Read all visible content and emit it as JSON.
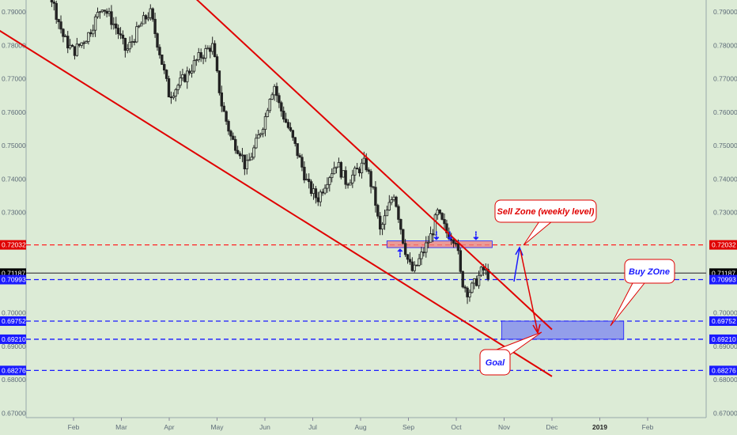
{
  "chart_data": {
    "type": "candlestick",
    "x_axis": {
      "ticks": [
        {
          "label": "Feb",
          "month": 1.0
        },
        {
          "label": "Mar",
          "month": 2.0
        },
        {
          "label": "Apr",
          "month": 3.0
        },
        {
          "label": "May",
          "month": 4.0
        },
        {
          "label": "Jun",
          "month": 5.0
        },
        {
          "label": "Jul",
          "month": 6.0
        },
        {
          "label": "Aug",
          "month": 7.0
        },
        {
          "label": "Sep",
          "month": 8.0
        },
        {
          "label": "Oct",
          "month": 9.0
        },
        {
          "label": "Nov",
          "month": 10.0
        },
        {
          "label": "Dec",
          "month": 11.0
        },
        {
          "label": "2019",
          "month": 12.0,
          "bold": true
        },
        {
          "label": "Feb",
          "month": 13.0
        }
      ]
    },
    "y_axis": {
      "range": [
        0.67,
        0.795
      ],
      "ticks": [
        "0.79000",
        "0.78000",
        "0.77000",
        "0.76000",
        "0.75000",
        "0.74000",
        "0.73000",
        "0.72000",
        "0.71000",
        "0.70000",
        "0.69000",
        "0.68000",
        "0.67000"
      ],
      "grid": false
    },
    "price_path": [
      [
        -0.8,
        0.788
      ],
      [
        -0.5,
        0.783
      ],
      [
        -0.2,
        0.795
      ],
      [
        0.2,
        0.8
      ],
      [
        0.5,
        0.796
      ],
      [
        0.8,
        0.782
      ],
      [
        1.0,
        0.778
      ],
      [
        1.3,
        0.783
      ],
      [
        1.6,
        0.792
      ],
      [
        1.9,
        0.785
      ],
      [
        2.1,
        0.778
      ],
      [
        2.4,
        0.786
      ],
      [
        2.6,
        0.79
      ],
      [
        2.8,
        0.778
      ],
      [
        3.0,
        0.765
      ],
      [
        3.3,
        0.77
      ],
      [
        3.6,
        0.776
      ],
      [
        3.9,
        0.78
      ],
      [
        4.1,
        0.762
      ],
      [
        4.3,
        0.752
      ],
      [
        4.5,
        0.748
      ],
      [
        4.6,
        0.743
      ],
      [
        4.8,
        0.75
      ],
      [
        5.0,
        0.758
      ],
      [
        5.1,
        0.765
      ],
      [
        5.2,
        0.768
      ],
      [
        5.3,
        0.762
      ],
      [
        5.5,
        0.755
      ],
      [
        5.7,
        0.747
      ],
      [
        5.9,
        0.738
      ],
      [
        6.1,
        0.734
      ],
      [
        6.3,
        0.74
      ],
      [
        6.5,
        0.745
      ],
      [
        6.7,
        0.739
      ],
      [
        6.9,
        0.742
      ],
      [
        7.1,
        0.745
      ],
      [
        7.3,
        0.734
      ],
      [
        7.4,
        0.724
      ],
      [
        7.5,
        0.728
      ],
      [
        7.7,
        0.736
      ],
      [
        7.9,
        0.721
      ],
      [
        8.0,
        0.715
      ],
      [
        8.1,
        0.712
      ],
      [
        8.3,
        0.718
      ],
      [
        8.5,
        0.724
      ],
      [
        8.6,
        0.73
      ],
      [
        8.7,
        0.727
      ],
      [
        8.8,
        0.724
      ],
      [
        9.0,
        0.722
      ],
      [
        9.1,
        0.71
      ],
      [
        9.25,
        0.706
      ],
      [
        9.4,
        0.709
      ],
      [
        9.55,
        0.713
      ],
      [
        9.7,
        0.711
      ]
    ],
    "channel": {
      "upper": [
        [
          3.1,
          0.8
        ],
        [
          11.0,
          0.695
        ]
      ],
      "lower": [
        [
          -0.95,
          0.788
        ],
        [
          11.0,
          0.681
        ]
      ]
    },
    "levels": [
      {
        "value": 0.72032,
        "label": "0.72032",
        "color": "#ff2222",
        "badge": "#e00000",
        "style": "dashed"
      },
      {
        "value": 0.71187,
        "label": "0.71187",
        "color": "#555555",
        "badge": "#000000",
        "style": "solid"
      },
      {
        "value": 0.70993,
        "label": "0.70993",
        "color": "#1a1aff",
        "badge": "#1a1aff",
        "style": "dashed"
      },
      {
        "value": 0.69752,
        "label": "0.69752",
        "color": "#1a1aff",
        "badge": "#1a1aff",
        "style": "dashed"
      },
      {
        "value": 0.6921,
        "label": "0.69210",
        "color": "#1a1aff",
        "badge": "#1a1aff",
        "style": "dashed"
      },
      {
        "value": 0.68276,
        "label": "0.68276",
        "color": "#1a1aff",
        "badge": "#1a1aff",
        "style": "dashed"
      }
    ],
    "sell_zone": {
      "x": [
        7.55,
        9.75
      ],
      "y": [
        0.7195,
        0.7215
      ],
      "color": "#ef8080"
    },
    "buy_zone": {
      "x": [
        9.95,
        12.5
      ],
      "y": [
        0.6921,
        0.69752
      ],
      "color": "#7b84f0"
    },
    "annotations": [
      {
        "text": "Sell Zone (weekly level)",
        "color": "#e00000"
      },
      {
        "text": "Buy ZOne",
        "color": "#1a1aff"
      },
      {
        "text": "Goal",
        "color": "#1a1aff"
      }
    ],
    "colors": {
      "background": "#dcebd6",
      "candles": "#222222",
      "channel": "#e00000"
    }
  }
}
